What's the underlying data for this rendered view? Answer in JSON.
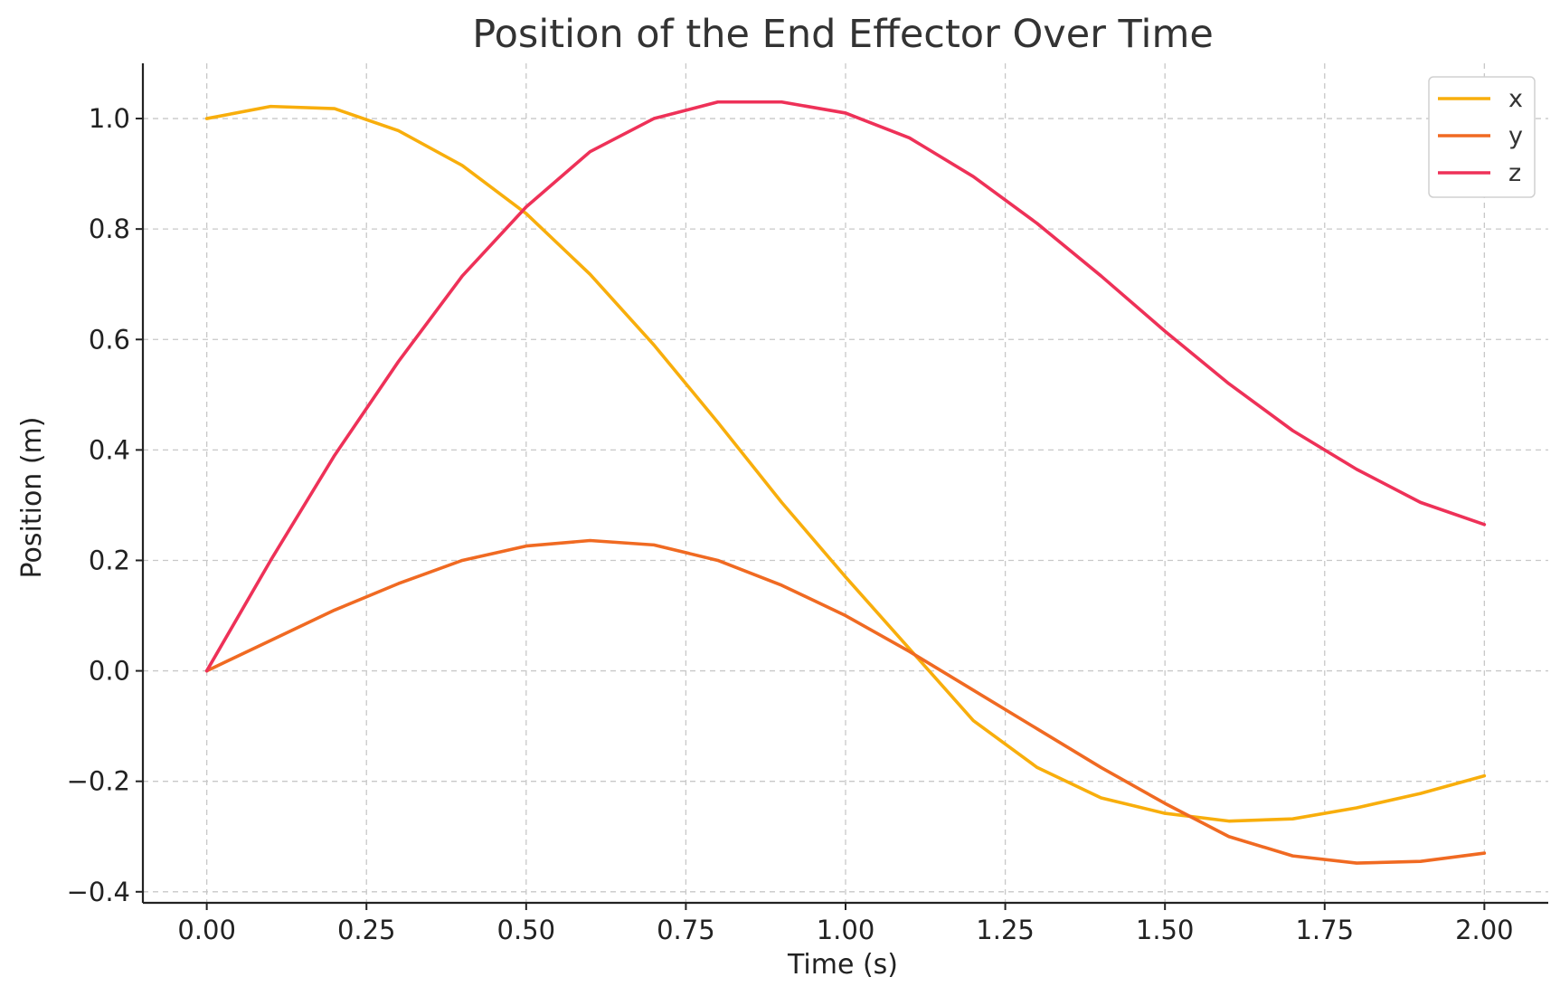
{
  "chart_data": {
    "type": "line",
    "title": "Position of the End Effector Over Time",
    "xlabel": "Time (s)",
    "ylabel": "Position (m)",
    "xlim": [
      -0.1,
      2.1
    ],
    "ylim": [
      -0.42,
      1.1
    ],
    "x_ticks": [
      0.0,
      0.25,
      0.5,
      0.75,
      1.0,
      1.25,
      1.5,
      1.75,
      2.0
    ],
    "x_tick_labels": [
      "0.00",
      "0.25",
      "0.50",
      "0.75",
      "1.00",
      "1.25",
      "1.50",
      "1.75",
      "2.00"
    ],
    "y_ticks": [
      -0.4,
      -0.2,
      0.0,
      0.2,
      0.4,
      0.6,
      0.8,
      1.0
    ],
    "y_tick_labels": [
      "−0.4",
      "−0.2",
      "0.0",
      "0.2",
      "0.4",
      "0.6",
      "0.8",
      "1.0"
    ],
    "grid": true,
    "legend_position": "top-right",
    "x": [
      0.0,
      0.1,
      0.2,
      0.3,
      0.4,
      0.5,
      0.6,
      0.7,
      0.8,
      0.9,
      1.0,
      1.1,
      1.2,
      1.3,
      1.4,
      1.5,
      1.6,
      1.7,
      1.8,
      1.9,
      2.0
    ],
    "series": [
      {
        "name": "x",
        "color": "#F8AE0C",
        "values": [
          1.0,
          1.022,
          1.018,
          0.978,
          0.915,
          0.828,
          0.718,
          0.59,
          0.45,
          0.305,
          0.17,
          0.04,
          -0.09,
          -0.175,
          -0.23,
          -0.258,
          -0.272,
          -0.268,
          -0.248,
          -0.222,
          -0.19
        ]
      },
      {
        "name": "y",
        "color": "#F06A22",
        "values": [
          0.0,
          0.055,
          0.11,
          0.158,
          0.2,
          0.226,
          0.236,
          0.228,
          0.2,
          0.155,
          0.1,
          0.035,
          -0.035,
          -0.105,
          -0.175,
          -0.24,
          -0.3,
          -0.335,
          -0.348,
          -0.345,
          -0.33
        ]
      },
      {
        "name": "z",
        "color": "#EE3158",
        "values": [
          0.0,
          0.2,
          0.39,
          0.56,
          0.715,
          0.84,
          0.94,
          1.0,
          1.03,
          1.03,
          1.01,
          0.965,
          0.895,
          0.81,
          0.715,
          0.615,
          0.52,
          0.435,
          0.365,
          0.305,
          0.265
        ]
      }
    ]
  }
}
